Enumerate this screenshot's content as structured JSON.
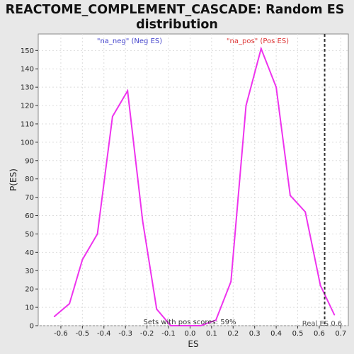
{
  "chart_data": {
    "type": "line",
    "title_line1": "REACTOME_COMPLEMENT_CASCADE: Random ES",
    "title_line2": "distribution",
    "xlabel": "ES",
    "ylabel": "P(ES)",
    "xlim": [
      -0.705,
      0.735
    ],
    "ylim": [
      0,
      159
    ],
    "xticks": [
      -0.6,
      -0.5,
      -0.4,
      -0.3,
      -0.2,
      -0.1,
      0.0,
      0.1,
      0.2,
      0.3,
      0.4,
      0.5,
      0.6,
      0.7
    ],
    "xtick_labels": [
      "-0.6",
      "-0.5",
      "-0.4",
      "-0.3",
      "-0.2",
      "-0.1",
      "0.0",
      "0.1",
      "0.2",
      "0.3",
      "0.4",
      "0.5",
      "0.6",
      "0.7"
    ],
    "yticks": [
      0,
      10,
      20,
      30,
      40,
      50,
      60,
      70,
      80,
      90,
      100,
      110,
      120,
      130,
      140,
      150
    ],
    "ytick_labels": [
      "0",
      "10",
      "20",
      "30",
      "40",
      "50",
      "60",
      "70",
      "80",
      "90",
      "100",
      "110",
      "120",
      "130",
      "140",
      "150"
    ],
    "grid": true,
    "series": [
      {
        "color": "#ee33ee",
        "x": [
          -0.63,
          -0.56,
          -0.5,
          -0.43,
          -0.36,
          -0.29,
          -0.22,
          -0.155,
          -0.09,
          -0.02,
          0.05,
          0.12,
          0.19,
          0.26,
          0.33,
          0.4,
          0.465,
          0.535,
          0.605,
          0.67
        ],
        "y": [
          5,
          12,
          36,
          50,
          114,
          128,
          57,
          9,
          0,
          0,
          0,
          3,
          24,
          120,
          151,
          130,
          71,
          62,
          22,
          6
        ]
      }
    ],
    "real_es_value": 0.625,
    "annotations": {
      "neg": "\"na_neg\" (Neg ES)",
      "pos": "\"na_pos\" (Pos ES)",
      "pos_scores": "Sets with pos scores: 59%",
      "real_es": "Real ES 0.6"
    },
    "colors": {
      "neg_label": "#4444cc",
      "pos_label": "#dd3333",
      "line": "#ee33ee",
      "plot_bg": "#ffffff",
      "grid": "#dddddd"
    }
  }
}
